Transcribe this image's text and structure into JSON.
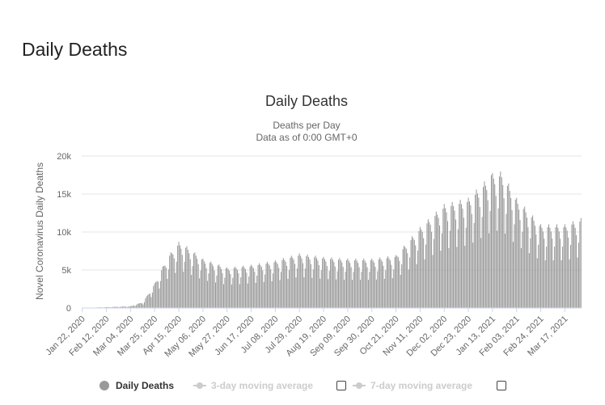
{
  "page": {
    "heading": "Daily Deaths"
  },
  "legend": {
    "items": [
      {
        "label": "Daily Deaths",
        "active": true
      },
      {
        "label": "3-day moving average",
        "active": false
      },
      {
        "label": "7-day moving average",
        "active": false
      }
    ]
  },
  "colors": {
    "bar": "#999999",
    "grid": "#e6e6e6",
    "inactive": "#cccccc"
  },
  "chart_data": {
    "type": "bar",
    "title": "Daily Deaths",
    "subtitle": [
      "Deaths per Day",
      "Data as of 0:00 GMT+0"
    ],
    "ylabel": "Novel Coronavirus Daily Deaths",
    "xlabel": "",
    "ylim": [
      0,
      20000
    ],
    "yticks": [
      0,
      5000,
      10000,
      15000,
      20000
    ],
    "ytick_labels": [
      "0",
      "5k",
      "10k",
      "15k",
      "20k"
    ],
    "grid": true,
    "legend_position": "bottom",
    "x_start": "2020-01-22",
    "x_end": "2021-03-31",
    "xtick_labels": [
      "Jan 22, 2020",
      "Feb 12, 2020",
      "Mar 04, 2020",
      "Mar 25, 2020",
      "Apr 15, 2020",
      "May 06, 2020",
      "May 27, 2020",
      "Jun 17, 2020",
      "Jul 08, 2020",
      "Jul 29, 2020",
      "Aug 19, 2020",
      "Sep 09, 2020",
      "Sep 30, 2020",
      "Oct 21, 2020",
      "Nov 11, 2020",
      "Dec 02, 2020",
      "Dec 23, 2020",
      "Jan 13, 2021",
      "Feb 03, 2021",
      "Feb 24, 2021",
      "Mar 17, 2021"
    ],
    "trend_points": [
      [
        "2020-01-22",
        10
      ],
      [
        "2020-02-12",
        100
      ],
      [
        "2020-03-04",
        200
      ],
      [
        "2020-03-15",
        700
      ],
      [
        "2020-03-25",
        2800
      ],
      [
        "2020-04-05",
        5800
      ],
      [
        "2020-04-15",
        7500
      ],
      [
        "2020-04-22",
        7000
      ],
      [
        "2020-05-06",
        5600
      ],
      [
        "2020-05-27",
        4600
      ],
      [
        "2020-06-17",
        4900
      ],
      [
        "2020-07-08",
        5400
      ],
      [
        "2020-07-29",
        6200
      ],
      [
        "2020-08-19",
        5800
      ],
      [
        "2020-09-09",
        5600
      ],
      [
        "2020-09-30",
        5600
      ],
      [
        "2020-10-21",
        6000
      ],
      [
        "2020-11-11",
        9200
      ],
      [
        "2020-12-02",
        11800
      ],
      [
        "2020-12-23",
        12500
      ],
      [
        "2021-01-13",
        15300
      ],
      [
        "2021-01-21",
        15500
      ],
      [
        "2021-02-03",
        12500
      ],
      [
        "2021-02-24",
        9500
      ],
      [
        "2021-03-17",
        9500
      ],
      [
        "2021-03-31",
        10200
      ]
    ],
    "weekly_pattern": [
      0.66,
      0.85,
      1.12,
      1.16,
      1.11,
      1.06,
      0.96
    ],
    "peak_value": 17500,
    "peak_date": "2021-01-12"
  }
}
